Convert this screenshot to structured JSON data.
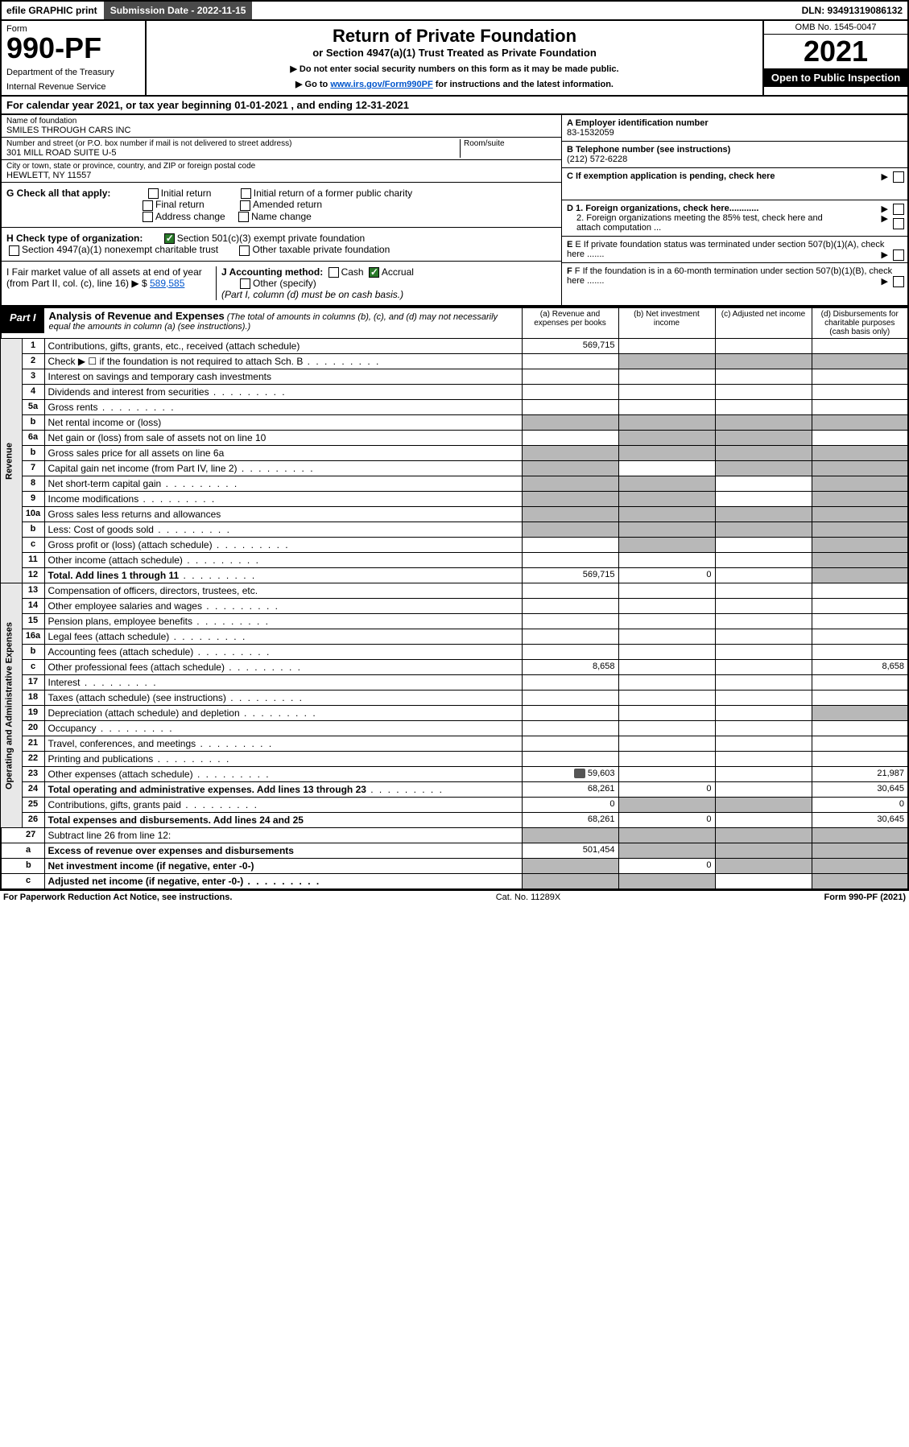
{
  "topbar": {
    "efile": "efile GRAPHIC print",
    "subdate_label": "Submission Date - 2022-11-15",
    "dln": "DLN: 93491319086132"
  },
  "header": {
    "form_label": "Form",
    "form_num": "990-PF",
    "dept1": "Department of the Treasury",
    "dept2": "Internal Revenue Service",
    "title": "Return of Private Foundation",
    "subtitle": "or Section 4947(a)(1) Trust Treated as Private Foundation",
    "note1": "▶ Do not enter social security numbers on this form as it may be made public.",
    "note2_pre": "▶ Go to ",
    "note2_link": "www.irs.gov/Form990PF",
    "note2_post": " for instructions and the latest information.",
    "omb": "OMB No. 1545-0047",
    "year": "2021",
    "inspect": "Open to Public Inspection"
  },
  "calyear": "For calendar year 2021, or tax year beginning 01-01-2021            , and ending 12-31-2021",
  "info": {
    "name_label": "Name of foundation",
    "name": "SMILES THROUGH CARS INC",
    "addr_label": "Number and street (or P.O. box number if mail is not delivered to street address)",
    "addr": "301 MILL ROAD SUITE U-5",
    "room_label": "Room/suite",
    "city_label": "City or town, state or province, country, and ZIP or foreign postal code",
    "city": "HEWLETT, NY  11557",
    "a_label": "A Employer identification number",
    "a_val": "83-1532059",
    "b_label": "B Telephone number (see instructions)",
    "b_val": "(212) 572-6228",
    "c_label": "C If exemption application is pending, check here",
    "d1": "D 1. Foreign organizations, check here............",
    "d2": "2. Foreign organizations meeting the 85% test, check here and attach computation ...",
    "e_label": "E  If private foundation status was terminated under section 507(b)(1)(A), check here .......",
    "f_label": "F  If the foundation is in a 60-month termination under section 507(b)(1)(B), check here .......",
    "g_label": "G Check all that apply:",
    "g_opts": [
      "Initial return",
      "Initial return of a former public charity",
      "Final return",
      "Amended return",
      "Address change",
      "Name change"
    ],
    "h_label": "H Check type of organization:",
    "h_opt1": "Section 501(c)(3) exempt private foundation",
    "h_opt2": "Section 4947(a)(1) nonexempt charitable trust",
    "h_opt3": "Other taxable private foundation",
    "i_label": "I Fair market value of all assets at end of year (from Part II, col. (c), line 16)",
    "i_val": "589,585",
    "i_prefix": "▶ $",
    "j_label": "J Accounting method:",
    "j_cash": "Cash",
    "j_accrual": "Accrual",
    "j_other": "Other (specify)",
    "j_note": "(Part I, column (d) must be on cash basis.)"
  },
  "part1": {
    "tag": "Part I",
    "title": "Analysis of Revenue and Expenses",
    "note": "(The total of amounts in columns (b), (c), and (d) may not necessarily equal the amounts in column (a) (see instructions).)",
    "cols": {
      "a": "(a)   Revenue and expenses per books",
      "b": "(b)   Net investment income",
      "c": "(c)   Adjusted net income",
      "d": "(d)   Disbursements for charitable purposes (cash basis only)"
    }
  },
  "sections": {
    "revenue": "Revenue",
    "expenses": "Operating and Administrative Expenses"
  },
  "rows": [
    {
      "n": "1",
      "d": "Contributions, gifts, grants, etc., received (attach schedule)",
      "a": "569,715",
      "sec": "rev"
    },
    {
      "n": "2",
      "d": "Check ▶ ☐ if the foundation is not required to attach Sch. B",
      "dots": true,
      "sec": "rev",
      "shade_bcd": true
    },
    {
      "n": "3",
      "d": "Interest on savings and temporary cash investments",
      "sec": "rev"
    },
    {
      "n": "4",
      "d": "Dividends and interest from securities",
      "dots": true,
      "sec": "rev"
    },
    {
      "n": "5a",
      "d": "Gross rents",
      "dots": true,
      "sec": "rev"
    },
    {
      "n": "b",
      "d": "Net rental income or (loss)",
      "sec": "rev",
      "shade_abcd": true
    },
    {
      "n": "6a",
      "d": "Net gain or (loss) from sale of assets not on line 10",
      "sec": "rev",
      "shade_bc": true
    },
    {
      "n": "b",
      "d": "Gross sales price for all assets on line 6a",
      "sec": "rev",
      "shade_abcd": true
    },
    {
      "n": "7",
      "d": "Capital gain net income (from Part IV, line 2)",
      "dots": true,
      "sec": "rev",
      "shade_a": true,
      "shade_cd": true
    },
    {
      "n": "8",
      "d": "Net short-term capital gain",
      "dots": true,
      "sec": "rev",
      "shade_ab": true,
      "shade_d": true
    },
    {
      "n": "9",
      "d": "Income modifications",
      "dots": true,
      "sec": "rev",
      "shade_ab": true,
      "shade_d": true
    },
    {
      "n": "10a",
      "d": "Gross sales less returns and allowances",
      "sec": "rev",
      "shade_abcd": true
    },
    {
      "n": "b",
      "d": "Less: Cost of goods sold",
      "dots": true,
      "sec": "rev",
      "shade_abcd": true
    },
    {
      "n": "c",
      "d": "Gross profit or (loss) (attach schedule)",
      "dots": true,
      "sec": "rev",
      "shade_b": true,
      "shade_d": true
    },
    {
      "n": "11",
      "d": "Other income (attach schedule)",
      "dots": true,
      "sec": "rev",
      "shade_d": true
    },
    {
      "n": "12",
      "d": "Total. Add lines 1 through 11",
      "dots": true,
      "bold": true,
      "a": "569,715",
      "b": "0",
      "sec": "rev",
      "shade_d": true
    },
    {
      "n": "13",
      "d": "Compensation of officers, directors, trustees, etc.",
      "sec": "exp"
    },
    {
      "n": "14",
      "d": "Other employee salaries and wages",
      "dots": true,
      "sec": "exp"
    },
    {
      "n": "15",
      "d": "Pension plans, employee benefits",
      "dots": true,
      "sec": "exp"
    },
    {
      "n": "16a",
      "d": "Legal fees (attach schedule)",
      "dots": true,
      "sec": "exp"
    },
    {
      "n": "b",
      "d": "Accounting fees (attach schedule)",
      "dots": true,
      "sec": "exp"
    },
    {
      "n": "c",
      "d": "Other professional fees (attach schedule)",
      "dots": true,
      "a": "8,658",
      "dd": "8,658",
      "sec": "exp"
    },
    {
      "n": "17",
      "d": "Interest",
      "dots": true,
      "sec": "exp"
    },
    {
      "n": "18",
      "d": "Taxes (attach schedule) (see instructions)",
      "dots": true,
      "sec": "exp"
    },
    {
      "n": "19",
      "d": "Depreciation (attach schedule) and depletion",
      "dots": true,
      "sec": "exp",
      "shade_d": true
    },
    {
      "n": "20",
      "d": "Occupancy",
      "dots": true,
      "sec": "exp"
    },
    {
      "n": "21",
      "d": "Travel, conferences, and meetings",
      "dots": true,
      "sec": "exp"
    },
    {
      "n": "22",
      "d": "Printing and publications",
      "dots": true,
      "sec": "exp"
    },
    {
      "n": "23",
      "d": "Other expenses (attach schedule)",
      "dots": true,
      "a": "59,603",
      "dd": "21,987",
      "sec": "exp",
      "att": true
    },
    {
      "n": "24",
      "d": "Total operating and administrative expenses. Add lines 13 through 23",
      "dots": true,
      "bold": true,
      "a": "68,261",
      "b": "0",
      "dd": "30,645",
      "sec": "exp"
    },
    {
      "n": "25",
      "d": "Contributions, gifts, grants paid",
      "dots": true,
      "a": "0",
      "dd": "0",
      "sec": "exp",
      "shade_bc": true
    },
    {
      "n": "26",
      "d": "Total expenses and disbursements. Add lines 24 and 25",
      "bold": true,
      "a": "68,261",
      "b": "0",
      "dd": "30,645",
      "sec": "exp"
    },
    {
      "n": "27",
      "d": "Subtract line 26 from line 12:",
      "sec": "none",
      "shade_abcd": true
    },
    {
      "n": "a",
      "d": "Excess of revenue over expenses and disbursements",
      "bold": true,
      "a": "501,454",
      "sec": "none",
      "shade_bcd": true
    },
    {
      "n": "b",
      "d": "Net investment income (if negative, enter -0-)",
      "bold": true,
      "b": "0",
      "sec": "none",
      "shade_a": true,
      "shade_cd": true
    },
    {
      "n": "c",
      "d": "Adjusted net income (if negative, enter -0-)",
      "bold": true,
      "dots": true,
      "sec": "none",
      "shade_ab": true,
      "shade_d": true
    }
  ],
  "footer": {
    "left": "For Paperwork Reduction Act Notice, see instructions.",
    "mid": "Cat. No. 11289X",
    "right": "Form 990-PF (2021)"
  }
}
